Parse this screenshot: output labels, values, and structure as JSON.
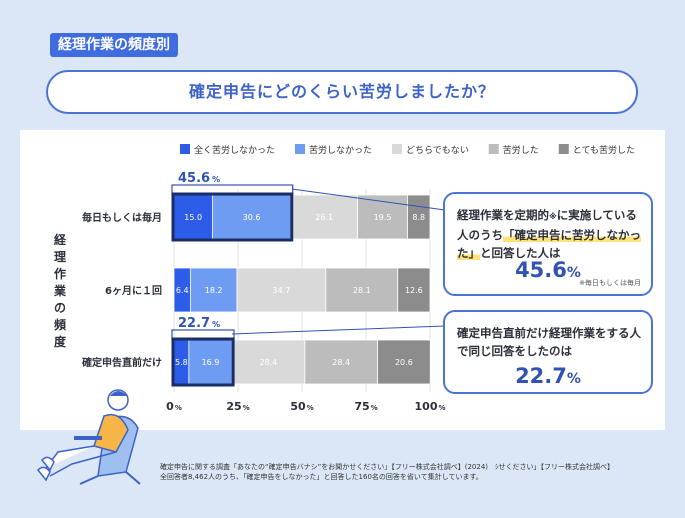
{
  "header": {
    "badge": "経理作業の頻度別"
  },
  "title": "確定申告にどのくらい苦労しましたか？",
  "chart_data": {
    "type": "bar",
    "orientation": "horizontal-stacked-100",
    "ylabel": "経理作業の頻度",
    "categories": [
      "毎日もしくは毎月",
      "6ヶ月に１回",
      "確定申告直前だけ"
    ],
    "series": [
      {
        "name": "全く苦労しなかった",
        "color": "#2d5ce8",
        "values": [
          15.0,
          6.4,
          5.8
        ]
      },
      {
        "name": "苦労しなかった",
        "color": "#6d9cf2",
        "values": [
          30.6,
          18.2,
          16.9
        ]
      },
      {
        "name": "どちらでもない",
        "color": "#d9d9d9",
        "values": [
          26.1,
          34.7,
          28.4
        ]
      },
      {
        "name": "苦労した",
        "color": "#bcbcbc",
        "values": [
          19.5,
          28.1,
          28.4
        ]
      },
      {
        "name": "とても苦労した",
        "color": "#8c8c8c",
        "values": [
          8.8,
          12.6,
          20.6
        ]
      }
    ],
    "xlim": [
      0,
      100
    ],
    "xticks": [
      {
        "num": "0",
        "unit": "%"
      },
      {
        "num": "25",
        "unit": "%"
      },
      {
        "num": "50",
        "unit": "%"
      },
      {
        "num": "75",
        "unit": "%"
      },
      {
        "num": "100",
        "unit": "%"
      }
    ],
    "highlights": [
      {
        "row": 0,
        "num": "45.6",
        "unit": "%"
      },
      {
        "row": 2,
        "num": "22.7",
        "unit": "%"
      }
    ],
    "legend_position": "top"
  },
  "callout1": {
    "line_before": "経理作業を定期的",
    "mark": "※",
    "line_mid": "に実施している人のうち",
    "highlight": "「確定申告に苦労しなかった」",
    "line_after": "と回答した人は",
    "value": "45.6",
    "unit": "%",
    "note": "※毎日もしくは毎月"
  },
  "callout2": {
    "text": "確定申告直前だけ経理作業をする人で同じ回答をしたのは",
    "value": "22.7",
    "unit": "%"
  },
  "footer": {
    "line1": "確定申告に関する調査「あなたの“確定申告バナシ”をお聞かせください」【フリー株式会社調べ】(2024)　ｼせください」【フリー株式会社調べ】",
    "line2": "全回答者8,462人のうち、「確定申告をしなかった」と回答した160名の回答を省いて集計しています。"
  }
}
